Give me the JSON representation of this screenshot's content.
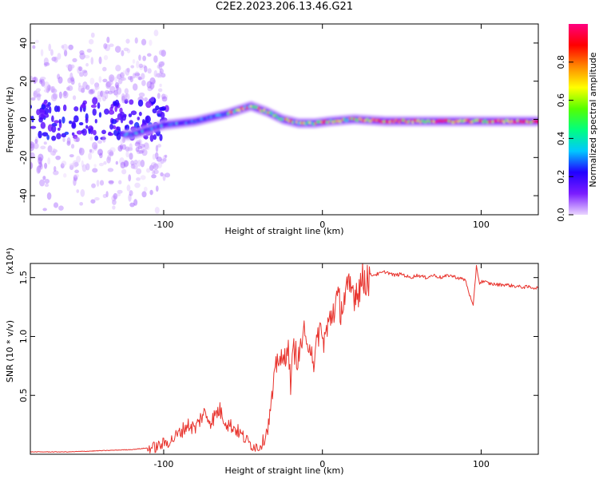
{
  "title": "C2E2.2023.206.13.46.G21",
  "chart_data": [
    {
      "type": "heatmap",
      "xlabel": "Height of straight line (km)",
      "ylabel": "Frequency (Hz)",
      "xlim": [
        -184,
        136
      ],
      "ylim": [
        -50,
        50
      ],
      "x_ticks": [
        -100,
        0,
        100
      ],
      "y_ticks": [
        -40,
        -20,
        0,
        20,
        40
      ],
      "colorbar": {
        "label": "Normalized spectral amplitude",
        "range": [
          0.0,
          1.0
        ],
        "ticks": [
          "0.0",
          "0.2",
          "0.4",
          "0.6",
          "0.8"
        ],
        "colors": [
          "#ead6ff",
          "#7a1cff",
          "#2200ff",
          "#00c8ff",
          "#00ff80",
          "#55ff00",
          "#ffff00",
          "#ff8800",
          "#ff0000",
          "#ff0080"
        ]
      },
      "ridge": {
        "x": [
          -120,
          -100,
          -80,
          -60,
          -45,
          -35,
          -25,
          -15,
          -5,
          5,
          20,
          40,
          60,
          80,
          100,
          120,
          136
        ],
        "frequency": [
          -8,
          -3,
          -1,
          3,
          7,
          4,
          0,
          -2,
          -2,
          -1,
          0,
          -1,
          -1,
          -1,
          -1,
          -1,
          -1
        ]
      },
      "grid": false
    },
    {
      "type": "line",
      "xlabel": "Height of straight line (km)",
      "ylabel": "SNR (10 * v/v)",
      "y_scale_label": "(x10⁴)",
      "xlim": [
        -184,
        136
      ],
      "ylim": [
        0,
        1.62
      ],
      "x_ticks": [
        -100,
        0,
        100
      ],
      "y_ticks": [
        "0.5",
        "1.0",
        "1.5"
      ],
      "series_color": "#e8342e",
      "x": [
        -184,
        -160,
        -140,
        -120,
        -105,
        -95,
        -90,
        -85,
        -80,
        -75,
        -70,
        -65,
        -60,
        -55,
        -50,
        -45,
        -40,
        -37,
        -34,
        -31,
        -28,
        -25,
        -22,
        -20,
        -18,
        -15,
        -12,
        -10,
        -8,
        -5,
        -2,
        0,
        3,
        6,
        9,
        12,
        15,
        18,
        21,
        24,
        27,
        30,
        35,
        40,
        45,
        50,
        55,
        60,
        65,
        70,
        75,
        80,
        85,
        90,
        95,
        97,
        99,
        101,
        105,
        110,
        115,
        120,
        125,
        130,
        136
      ],
      "values": [
        0.02,
        0.02,
        0.03,
        0.04,
        0.06,
        0.12,
        0.18,
        0.25,
        0.22,
        0.35,
        0.28,
        0.38,
        0.26,
        0.22,
        0.15,
        0.08,
        0.06,
        0.12,
        0.25,
        0.55,
        0.85,
        0.75,
        0.95,
        0.6,
        0.9,
        0.8,
        1.05,
        0.85,
        1.0,
        0.75,
        1.1,
        0.95,
        1.05,
        1.2,
        1.3,
        1.25,
        1.35,
        1.4,
        1.38,
        1.45,
        1.5,
        1.52,
        1.53,
        1.55,
        1.52,
        1.53,
        1.5,
        1.52,
        1.5,
        1.52,
        1.5,
        1.52,
        1.5,
        1.48,
        1.25,
        1.6,
        1.45,
        1.47,
        1.45,
        1.44,
        1.44,
        1.43,
        1.42,
        1.42,
        1.41
      ]
    }
  ]
}
